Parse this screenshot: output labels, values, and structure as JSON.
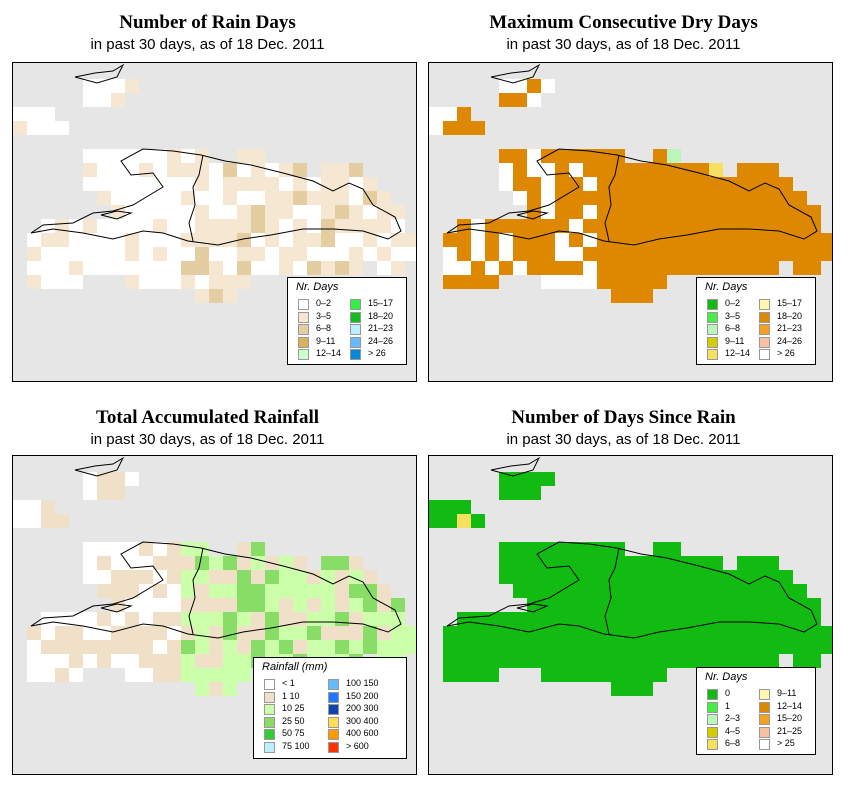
{
  "panels": [
    {
      "title": "Number of Rain Days",
      "subtitle": "in past 30 days, as of  18 Dec. 2011",
      "legend_title": "Nr. Days",
      "legend": [
        {
          "label": "0–2",
          "color": "#ffffff"
        },
        {
          "label": "3–5",
          "color": "#f5e7d1"
        },
        {
          "label": "6–8",
          "color": "#e5cda2"
        },
        {
          "label": "9–11",
          "color": "#d9b35a"
        },
        {
          "label": "12–14",
          "color": "#ccffcc"
        },
        {
          "label": "15–17",
          "color": "#33ee44"
        },
        {
          "label": "18–20",
          "color": "#11bb22"
        },
        {
          "label": "21–23",
          "color": "#bbeeff"
        },
        {
          "label": "24–26",
          "color": "#66bbff"
        },
        {
          "label": "> 26",
          "color": "#0088dd"
        }
      ]
    },
    {
      "title": "Maximum Consecutive Dry Days",
      "subtitle": "in past 30 days, as of  18 Dec. 2011",
      "legend_title": "Nr. Days",
      "legend": [
        {
          "label": "0–2",
          "color": "#11bb11"
        },
        {
          "label": "3–5",
          "color": "#44ee44"
        },
        {
          "label": "6–8",
          "color": "#bbf5bb"
        },
        {
          "label": "9–11",
          "color": "#d4cc00"
        },
        {
          "label": "12–14",
          "color": "#f5e060"
        },
        {
          "label": "15–17",
          "color": "#fff7b0"
        },
        {
          "label": "18–20",
          "color": "#dd8800"
        },
        {
          "label": "21–23",
          "color": "#f5a020"
        },
        {
          "label": "24–26",
          "color": "#f8c0a0"
        },
        {
          "label": "> 26",
          "color": "#ffffff"
        }
      ]
    },
    {
      "title": "Total Accumulated Rainfall",
      "subtitle": "in past 30 days, as of  18 Dec. 2011",
      "legend_title": "Rainfall (mm)",
      "legend": [
        {
          "label": "< 1",
          "color": "#ffffff"
        },
        {
          "label": "1   10",
          "color": "#f0e0c8"
        },
        {
          "label": "10   25",
          "color": "#ccffaa"
        },
        {
          "label": "25   50",
          "color": "#88dd66"
        },
        {
          "label": "50   75",
          "color": "#33cc33"
        },
        {
          "label": "75   100",
          "color": "#bbeeff"
        },
        {
          "label": "100  150",
          "color": "#66bbff"
        },
        {
          "label": "150  200",
          "color": "#2277ff"
        },
        {
          "label": "200  300",
          "color": "#1144aa"
        },
        {
          "label": "300  400",
          "color": "#ffdd55"
        },
        {
          "label": "400  600",
          "color": "#ff9900"
        },
        {
          "label": "> 600",
          "color": "#ff3300"
        }
      ]
    },
    {
      "title": "Number of Days Since Rain",
      "subtitle": "in past 30 days, as of  18 Dec. 2011",
      "legend_title": "Nr. Days",
      "legend": [
        {
          "label": "0",
          "color": "#11bb11"
        },
        {
          "label": "1",
          "color": "#44ee44"
        },
        {
          "label": "2–3",
          "color": "#bbf5bb"
        },
        {
          "label": "4–5",
          "color": "#d4cc00"
        },
        {
          "label": "6–8",
          "color": "#f5e060"
        },
        {
          "label": "9–11",
          "color": "#fff7b0"
        },
        {
          "label": "12–14",
          "color": "#dd8800"
        },
        {
          "label": "15–20",
          "color": "#f5a020"
        },
        {
          "label": "21–25",
          "color": "#f8c0a0"
        },
        {
          "label": "> 25",
          "color": "#ffffff"
        }
      ]
    }
  ],
  "map_colors": {
    "ocean": "#e6e6e6",
    "rain_days": [
      "#ffffff",
      "#f5e7d1",
      "#e5cda2"
    ],
    "dry_days": [
      "#dd8800",
      "#f5a020",
      "#d4cc00",
      "#f5e060",
      "#fff7b0",
      "#ffffff",
      "#f8c0a0",
      "#bbf5bb"
    ],
    "rainfall": [
      "#ffffff",
      "#f0e0c8",
      "#ccffaa",
      "#88dd66"
    ],
    "since_rain": [
      "#11bb11",
      "#44ee44",
      "#d4cc00",
      "#f5e060",
      "#fff7b0",
      "#f5a020",
      "#f8c0a0",
      "#ffffff"
    ]
  }
}
